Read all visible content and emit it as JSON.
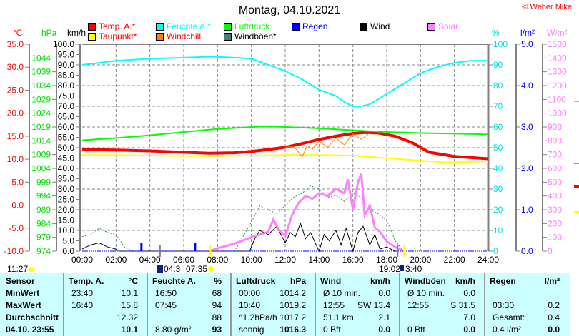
{
  "title": "Montag, 04.10.2021",
  "copyright": "© Weber Mike",
  "legend": [
    {
      "label": "Temp. A.*",
      "color": "#ff0000",
      "text_color": "#ff0000"
    },
    {
      "label": "Feuchte A.*",
      "color": "#00ffff",
      "text_color": "#00ffff"
    },
    {
      "label": "Luftdruck",
      "color": "#00ff00",
      "text_color": "#00ff00"
    },
    {
      "label": "Regen",
      "color": "#0000ff",
      "text_color": "#0000ff"
    },
    {
      "label": "Wind",
      "color": "#000000",
      "text_color": "#000000"
    },
    {
      "label": "Solar",
      "color": "#ff80ff",
      "text_color": "#ff80ff"
    },
    {
      "label": "Taupunkt*",
      "color": "#ffff00",
      "text_color": "#ff0000"
    },
    {
      "label": "Windchill",
      "color": "#ff8000",
      "text_color": "#ff0000"
    },
    {
      "label": "Windböen*",
      "color": "#408080",
      "text_color": "#000000"
    }
  ],
  "sun": {
    "left_time": "11:27",
    "moonrise": "04:3",
    "sunrise": "07:35",
    "sunset": "19:02",
    "moonset": "3:40"
  },
  "chart_data": {
    "type": "line",
    "title": "Montag, 04.10.2021",
    "x_ticks": [
      "00:00",
      "02:00",
      "04:00",
      "06:00",
      "08:00",
      "10:00",
      "12:00",
      "14:00",
      "16:00",
      "18:00",
      "20:00",
      "22:00",
      "24:00"
    ],
    "axes": {
      "temp": {
        "unit": "°C",
        "range": [
          -10,
          35
        ],
        "ticks": [
          "35.0",
          "30.0",
          "25.0",
          "20.0",
          "15.0",
          "10.0",
          "5.0",
          "0.0",
          "-5.0",
          "-10.0"
        ]
      },
      "pressure": {
        "unit": "hPa",
        "range": [
          974,
          1049
        ],
        "ticks": [
          "1044",
          "1039",
          "1034",
          "1029",
          "1024",
          "1019",
          "1014",
          "1009",
          "1004",
          "999",
          "994",
          "989",
          "984",
          "979",
          "974"
        ]
      },
      "wind": {
        "unit": "km/h",
        "range": [
          0,
          100
        ],
        "ticks": [
          "100.0",
          "95.0",
          "90.0",
          "85.0",
          "80.0",
          "75.0",
          "70.0",
          "65.0",
          "60.0",
          "55.0",
          "50.0",
          "45.0",
          "40.0",
          "35.0",
          "30.0",
          "25.0",
          "20.0",
          "15.0",
          "10.0",
          "5.0",
          "0.0"
        ]
      },
      "humidity": {
        "unit": "%",
        "range": [
          0,
          100
        ],
        "ticks": [
          "100",
          "90",
          "80",
          "70",
          "60",
          "50",
          "40",
          "30",
          "20",
          "10",
          "0"
        ]
      },
      "rain": {
        "unit": "l/m²",
        "range": [
          0,
          5
        ],
        "ticks": [
          "5.0",
          "4.0",
          "3.0",
          "2.0",
          "1.0",
          "0.0"
        ]
      },
      "solar": {
        "unit": "W/m²",
        "range": [
          0,
          1500
        ],
        "ticks": [
          "1500",
          "1400",
          "1300",
          "1200",
          "1100",
          "1000",
          "900",
          "800",
          "700",
          "600",
          "500",
          "400",
          "300",
          "200",
          "100",
          "0"
        ]
      }
    },
    "series": [
      {
        "name": "Temp. A.",
        "axis": "temp",
        "color": "#ff0000",
        "width": 4,
        "x": [
          0,
          2,
          4,
          6,
          7.5,
          9,
          10,
          11,
          12,
          13,
          14,
          15,
          16,
          16.7,
          17.5,
          18.5,
          19.5,
          20.5,
          22,
          24
        ],
        "values": [
          12.1,
          12.0,
          11.8,
          11.5,
          11.3,
          11.4,
          11.7,
          12.1,
          12.6,
          13.4,
          14.3,
          15.0,
          15.6,
          15.8,
          15.7,
          15.0,
          13.6,
          11.5,
          10.6,
          10.1
        ]
      },
      {
        "name": "Taupunkt",
        "axis": "temp",
        "color": "#ffff00",
        "width": 2,
        "x": [
          0,
          2,
          4,
          6,
          8,
          10,
          12,
          14,
          16,
          17,
          18,
          20,
          21.5,
          24
        ],
        "values": [
          10.9,
          10.9,
          10.8,
          10.7,
          10.7,
          10.8,
          10.9,
          10.9,
          10.8,
          10.5,
          10.2,
          9.7,
          9.3,
          9.5
        ]
      },
      {
        "name": "Windchill",
        "axis": "temp",
        "color": "#ff8000",
        "width": 1,
        "x": [
          12,
          12.5,
          13,
          13.3,
          13.6,
          14,
          14.5,
          15,
          15.5,
          16,
          16.5,
          17
        ],
        "values": [
          12.5,
          12.9,
          10.5,
          13.0,
          12.2,
          13.9,
          12.6,
          14.6,
          13.1,
          15.5,
          14.3,
          15.7
        ]
      },
      {
        "name": "Feuchte A.",
        "axis": "humidity",
        "color": "#00ffff",
        "width": 2,
        "x": [
          0,
          1,
          2,
          4,
          6,
          7.75,
          9,
          10,
          11,
          12,
          13,
          14,
          15,
          15.5,
          16,
          16.5,
          17,
          18,
          19,
          20,
          21,
          22,
          23,
          24
        ],
        "values": [
          90,
          91,
          92,
          93,
          93.5,
          94,
          93.5,
          93,
          90,
          87,
          83,
          78,
          75,
          72,
          70,
          70,
          71,
          76,
          81,
          86,
          89,
          91,
          92,
          92
        ]
      },
      {
        "name": "Luftdruck",
        "axis": "pressure",
        "color": "#00ff00",
        "width": 2,
        "x": [
          0,
          2,
          4,
          6,
          8,
          10.67,
          12,
          14,
          16,
          18,
          20,
          22,
          24
        ],
        "values": [
          1014.2,
          1015.0,
          1016.0,
          1017.2,
          1018.3,
          1019.2,
          1019.0,
          1018.5,
          1017.8,
          1017.2,
          1016.8,
          1016.6,
          1016.3
        ]
      },
      {
        "name": "Windböen",
        "axis": "wind",
        "color": "#408080",
        "width": 1,
        "dash": true,
        "x": [
          0,
          0.5,
          1,
          1.5,
          2,
          2.5,
          3,
          4,
          9,
          10,
          10.5,
          11,
          11.5,
          12,
          12.5,
          13,
          13.5,
          14,
          14.5,
          15,
          15.5,
          16,
          16.5,
          17,
          17.5,
          18,
          18.5,
          19
        ],
        "values": [
          7,
          8,
          11,
          9,
          8,
          2,
          0,
          0,
          0,
          14,
          22,
          20,
          18,
          22,
          26,
          28,
          31.5,
          30,
          26,
          27,
          24,
          28,
          26,
          20,
          18,
          15,
          5,
          0
        ]
      },
      {
        "name": "Wind",
        "axis": "wind",
        "color": "#000000",
        "width": 1,
        "x": [
          0,
          0.5,
          1,
          1.5,
          2,
          2.2,
          9.9,
          10.2,
          10.5,
          11,
          11.5,
          12,
          12.3,
          12.6,
          12.9,
          13.2,
          13.5,
          14,
          14.3,
          14.6,
          15,
          15.3,
          15.6,
          16,
          16.3,
          16.6,
          17,
          17.3,
          17.6,
          18,
          18.5
        ],
        "values": [
          1,
          3,
          4,
          2,
          1,
          0,
          0,
          6,
          10,
          8,
          12,
          4,
          9,
          7,
          13.4,
          6,
          9,
          0,
          8,
          5,
          10,
          3,
          11,
          0,
          9,
          12,
          3,
          8,
          1,
          2,
          0
        ]
      },
      {
        "name": "Solar",
        "axis": "solar",
        "color": "#ff80ff",
        "width": 3,
        "x": [
          7.5,
          8,
          9,
          10,
          10.5,
          11,
          11.3,
          11.6,
          12,
          12.4,
          12.8,
          13.2,
          13.6,
          14,
          14.5,
          15,
          15.5,
          15.7,
          16,
          16.3,
          16.5,
          16.7,
          17,
          17.3,
          17.6,
          18,
          18.5,
          19
        ],
        "values": [
          0,
          20,
          55,
          100,
          120,
          140,
          230,
          160,
          110,
          260,
          350,
          400,
          380,
          420,
          400,
          450,
          420,
          520,
          300,
          500,
          560,
          260,
          330,
          170,
          140,
          70,
          30,
          0
        ]
      },
      {
        "name": "Regen",
        "axis": "rain",
        "color": "#0000ff",
        "type": "bar",
        "x": [
          3.5,
          6.67
        ],
        "values": [
          0.2,
          0.2
        ]
      }
    ]
  },
  "table": {
    "headers": [
      "Sensor",
      "Temp. A.",
      "°C",
      "Feuchte A.",
      "%",
      "Luftdruck",
      "hPa",
      "Wind",
      "km/h",
      "Windböen",
      "km/h",
      "Regen",
      "l/m²"
    ],
    "rows": [
      [
        "MinWert",
        "23:40",
        "10.1",
        "16:50",
        "68",
        "00:00",
        "1014.2",
        "Ø 10 min.",
        "0.0",
        "Ø 10 min.",
        "0.0",
        "",
        ""
      ],
      [
        "MaxWert",
        "16:40",
        "15.8",
        "07:45",
        "94",
        "10:40",
        "1019.2",
        "12:55",
        "SW 13.4",
        "12:55",
        "S 31.5",
        "03:30",
        "0.2"
      ],
      [
        "Durchschnitt",
        "",
        "12.32",
        "",
        "88",
        "^1.2hPa/h",
        "1017.2",
        "51.1 km",
        "2.1",
        "",
        "7.0",
        "Gesamt:",
        "0.4"
      ],
      [
        "04.10. 23:55",
        "",
        "10.1",
        "8.80 g/m²",
        "93",
        "sonnig",
        "1016.3",
        "0 Bft",
        "0.0",
        "0 Bft",
        "0.0",
        "0.4 l/m²",
        "0.0"
      ]
    ]
  }
}
